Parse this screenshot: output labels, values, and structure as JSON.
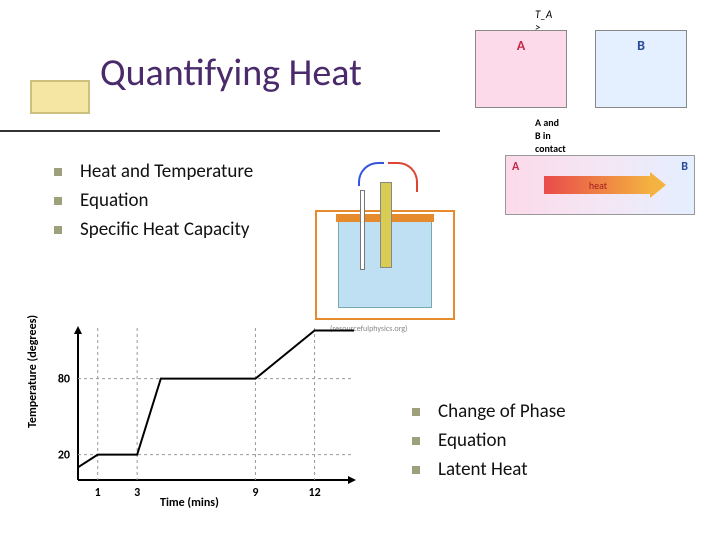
{
  "title": "Quantifying Heat",
  "bullets_left": {
    "items": [
      "Heat and Temperature",
      "Equation",
      "Specific Heat Capacity"
    ],
    "bullet_color": "#9da07a",
    "font_size": 19
  },
  "bullets_right": {
    "items": [
      "Change of Phase",
      "Equation",
      "Latent Heat"
    ],
    "bullet_color": "#9da07a",
    "font_size": 19
  },
  "boxes_top": {
    "relation_label": "T_A > T_B",
    "a_label": "A",
    "a_color": "#fcdaea",
    "a_text": "#c22a4a",
    "b_label": "B",
    "b_color": "#e4efff",
    "b_text": "#2a4a9a",
    "contact_label": "A and B in contact"
  },
  "contact_box": {
    "a_label": "A",
    "b_label": "B",
    "arrow_label": "heat",
    "gradient_from": "#fcdaea",
    "gradient_to": "#e4efff",
    "arrow_from": "#e94b4b",
    "arrow_to": "#f4b340"
  },
  "calorimeter": {
    "credit": "(resourcefulphysics.org)",
    "outer_stroke": "#e68a2e",
    "liquid_fill": "#bfe0f2",
    "heater_fill": "#d9cc55",
    "wire_red": "#d43333",
    "wire_blue": "#3355dd"
  },
  "chart": {
    "type": "line-step",
    "x_label": "Time (mins)",
    "y_label": "Temperature (degrees)",
    "y_ticks": [
      20,
      80
    ],
    "x_ticks": [
      1,
      3,
      9,
      12
    ],
    "xlim": [
      0,
      14
    ],
    "ylim": [
      0,
      120
    ],
    "line_color": "#000000",
    "line_width": 2,
    "points": [
      {
        "x": 0,
        "y": 10
      },
      {
        "x": 1,
        "y": 20
      },
      {
        "x": 3,
        "y": 20
      },
      {
        "x": 4.2,
        "y": 80
      },
      {
        "x": 9,
        "y": 80
      },
      {
        "x": 12,
        "y": 118
      },
      {
        "x": 14,
        "y": 118
      }
    ],
    "axis_color": "#000000",
    "tick_font_size": 12
  },
  "colors": {
    "title": "#4a2a6a",
    "accent_fill": "#f5e6a3",
    "accent_border": "#cdbf7e"
  }
}
